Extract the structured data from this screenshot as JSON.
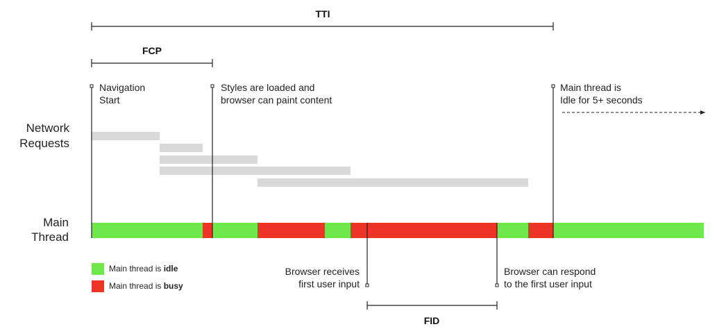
{
  "metrics": {
    "tti": "TTI",
    "fcp": "FCP",
    "fid": "FID"
  },
  "row_labels": {
    "network": [
      "Network",
      "Requests"
    ],
    "main_thread": [
      "Main",
      "Thread"
    ]
  },
  "markers": {
    "navigation_start": [
      "Navigation",
      "Start"
    ],
    "styles_loaded": [
      "Styles are loaded and",
      "browser can paint content"
    ],
    "idle": [
      "Main thread is",
      "Idle for 5+ seconds"
    ],
    "first_input": [
      "Browser receives",
      "first user input"
    ],
    "respond": [
      "Browser can respond",
      "to the first user input"
    ]
  },
  "legend": {
    "idle": {
      "prefix": "Main thread is ",
      "bold": "idle",
      "color": "#6ee84a"
    },
    "busy": {
      "prefix": "Main thread is ",
      "bold": "busy",
      "color": "#ee3426"
    }
  },
  "colors": {
    "idle": "#6ee84a",
    "busy": "#ee3426",
    "request": "#d9d9d9",
    "line": "#222222"
  }
}
